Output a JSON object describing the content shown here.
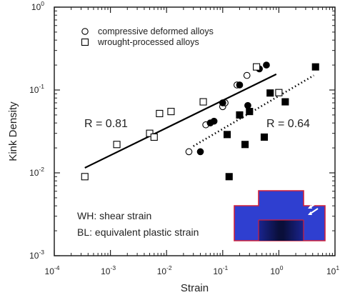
{
  "chart_data": {
    "type": "scatter",
    "xlabel": "Strain",
    "ylabel": "Kink Density",
    "x_scale": "log",
    "y_scale": "log",
    "xlim": [
      0.0001,
      10
    ],
    "ylim": [
      0.001,
      1
    ],
    "x_ticks": [
      {
        "value": 0.0001,
        "base": "10",
        "exp": "-4"
      },
      {
        "value": 0.001,
        "base": "10",
        "exp": "-3"
      },
      {
        "value": 0.01,
        "base": "10",
        "exp": "-2"
      },
      {
        "value": 0.1,
        "base": "10",
        "exp": "-1"
      },
      {
        "value": 1,
        "base": "10",
        "exp": "0"
      },
      {
        "value": 10,
        "base": "10",
        "exp": "1"
      }
    ],
    "y_ticks": [
      {
        "value": 0.001,
        "base": "10",
        "exp": "-3"
      },
      {
        "value": 0.01,
        "base": "10",
        "exp": "-2"
      },
      {
        "value": 0.1,
        "base": "10",
        "exp": "-1"
      },
      {
        "value": 1,
        "base": "10",
        "exp": "0"
      }
    ],
    "legend": {
      "placement": "top-left",
      "entries": [
        {
          "marker": "open-circle",
          "label": "compressive deformed alloys"
        },
        {
          "marker": "open-square",
          "label": "wrought-processed alloys"
        }
      ]
    },
    "annotations": {
      "r_solid": "R = 0.81",
      "r_dotted": "R = 0.64",
      "note_wh": "WH: shear strain",
      "note_bl": "BL: equivalent plastic strain"
    },
    "series": [
      {
        "marker": "open-circle",
        "points": [
          [
            0.025,
            0.018
          ],
          [
            0.05,
            0.038
          ],
          [
            0.1,
            0.063
          ],
          [
            0.11,
            0.07
          ],
          [
            0.18,
            0.115
          ],
          [
            0.27,
            0.15
          ]
        ]
      },
      {
        "marker": "filled-circle",
        "points": [
          [
            0.04,
            0.018
          ],
          [
            0.06,
            0.04
          ],
          [
            0.07,
            0.042
          ],
          [
            0.1,
            0.07
          ],
          [
            0.2,
            0.115
          ],
          [
            0.28,
            0.065
          ],
          [
            0.45,
            0.18
          ],
          [
            0.6,
            0.2
          ]
        ]
      },
      {
        "marker": "open-square",
        "points": [
          [
            0.00035,
            0.009
          ],
          [
            0.0013,
            0.022
          ],
          [
            0.005,
            0.03
          ],
          [
            0.006,
            0.027
          ],
          [
            0.0075,
            0.052
          ],
          [
            0.012,
            0.055
          ],
          [
            0.045,
            0.072
          ],
          [
            0.4,
            0.19
          ],
          [
            1.0,
            0.093
          ]
        ]
      },
      {
        "marker": "filled-square",
        "points": [
          [
            0.12,
            0.029
          ],
          [
            0.13,
            0.009
          ],
          [
            0.2,
            0.05
          ],
          [
            0.25,
            0.022
          ],
          [
            0.3,
            0.055
          ],
          [
            0.55,
            0.027
          ],
          [
            0.7,
            0.092
          ],
          [
            1.3,
            0.072
          ],
          [
            4.5,
            0.19
          ]
        ]
      }
    ],
    "fit_lines": [
      {
        "style": "solid",
        "from": [
          0.00035,
          0.0115
        ],
        "to": [
          0.9,
          0.155
        ]
      },
      {
        "style": "dotted",
        "from": [
          0.03,
          0.021
        ],
        "to": [
          4.2,
          0.15
        ]
      }
    ],
    "inset": {
      "kind": "microstructure-image",
      "fill": "#2f3fd0",
      "border": "#d0203a"
    },
    "colors": {
      "axis": "#222222",
      "marker": "#000000",
      "line": "#000000"
    }
  }
}
